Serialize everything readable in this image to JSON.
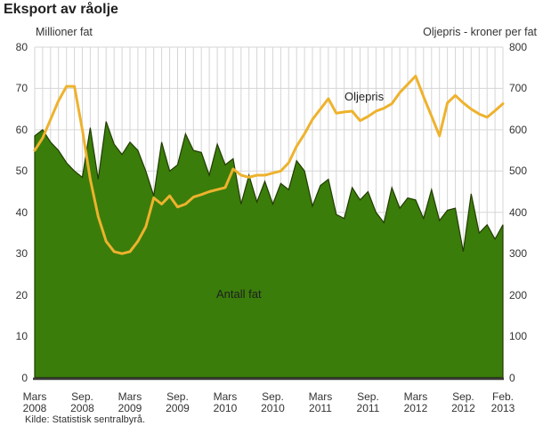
{
  "title": "Eksport av råolje",
  "left_axis_title": "Millioner fat",
  "right_axis_title": "Oljepris - kroner per fat",
  "source": "Kilde: Statistisk sentralbyrå.",
  "series_labels": {
    "area": "Antall fat",
    "line": "Oljepris"
  },
  "colors": {
    "area_fill": "#3a7d0a",
    "area_edge": "#223c00",
    "line": "#eeb22d",
    "grid": "#d6d6d6",
    "axis": "#3a3a3a",
    "text": "#333333"
  },
  "chart_data": {
    "type": "area",
    "title": "Eksport av råolje",
    "x_label": "",
    "left_axis": {
      "label": "Millioner fat",
      "min": 0,
      "max": 80,
      "step": 10
    },
    "right_axis": {
      "label": "Oljepris - kroner per fat",
      "min": 0,
      "max": 800,
      "step": 100
    },
    "grid": true,
    "months": [
      "2008-03",
      "2008-04",
      "2008-05",
      "2008-06",
      "2008-07",
      "2008-08",
      "2008-09",
      "2008-10",
      "2008-11",
      "2008-12",
      "2009-01",
      "2009-02",
      "2009-03",
      "2009-04",
      "2009-05",
      "2009-06",
      "2009-07",
      "2009-08",
      "2009-09",
      "2009-10",
      "2009-11",
      "2009-12",
      "2010-01",
      "2010-02",
      "2010-03",
      "2010-04",
      "2010-05",
      "2010-06",
      "2010-07",
      "2010-08",
      "2010-09",
      "2010-10",
      "2010-11",
      "2010-12",
      "2011-01",
      "2011-02",
      "2011-03",
      "2011-04",
      "2011-05",
      "2011-06",
      "2011-07",
      "2011-08",
      "2011-09",
      "2011-10",
      "2011-11",
      "2011-12",
      "2012-01",
      "2012-02",
      "2012-03",
      "2012-04",
      "2012-05",
      "2012-06",
      "2012-07",
      "2012-08",
      "2012-09",
      "2012-10",
      "2012-11",
      "2012-12",
      "2013-01",
      "2013-02"
    ],
    "series": [
      {
        "name": "Antall fat",
        "type": "area",
        "axis": "left",
        "unit": "millioner fat",
        "values": [
          58.5,
          60,
          57,
          55,
          52,
          50,
          48.5,
          60.5,
          48,
          62,
          56.5,
          54,
          57,
          55,
          50,
          44,
          57,
          50,
          51.5,
          59,
          55,
          54.5,
          49,
          56.5,
          51.5,
          53,
          42,
          49,
          42.5,
          47.5,
          42,
          47,
          45.5,
          52.5,
          50,
          41.5,
          46.5,
          48,
          39.5,
          38.5,
          46,
          43,
          45,
          40,
          37.5,
          46,
          41,
          43.5,
          43,
          38.5,
          45.5,
          38,
          40.5,
          41,
          30.5,
          44.5,
          35,
          37,
          33.5,
          37
        ]
      },
      {
        "name": "Oljepris",
        "type": "line",
        "axis": "right",
        "unit": "kroner per fat",
        "values": [
          550,
          580,
          625,
          670,
          705,
          705,
          600,
          480,
          390,
          330,
          305,
          300,
          305,
          330,
          365,
          435,
          420,
          440,
          413,
          420,
          437,
          443,
          450,
          455,
          460,
          505,
          490,
          485,
          490,
          490,
          495,
          500,
          520,
          560,
          590,
          625,
          650,
          675,
          640,
          643,
          645,
          622,
          632,
          645,
          652,
          663,
          690,
          710,
          730,
          680,
          633,
          585,
          665,
          683,
          665,
          650,
          638,
          630,
          646,
          663
        ]
      }
    ],
    "x_ticks": [
      {
        "line1": "Mars",
        "line2": "2008",
        "month_index": 0
      },
      {
        "line1": "Sep.",
        "line2": "2008",
        "month_index": 6
      },
      {
        "line1": "Mars",
        "line2": "2009",
        "month_index": 12
      },
      {
        "line1": "Sep.",
        "line2": "2009",
        "month_index": 18
      },
      {
        "line1": "Mars",
        "line2": "2010",
        "month_index": 24
      },
      {
        "line1": "Sep.",
        "line2": "2010",
        "month_index": 30
      },
      {
        "line1": "Mars",
        "line2": "2011",
        "month_index": 36
      },
      {
        "line1": "Sep.",
        "line2": "2011",
        "month_index": 42
      },
      {
        "line1": "Mars",
        "line2": "2012",
        "month_index": 48
      },
      {
        "line1": "Sep.",
        "line2": "2012",
        "month_index": 54
      },
      {
        "line1": "Feb.",
        "line2": "2013",
        "month_index": 59
      }
    ]
  }
}
